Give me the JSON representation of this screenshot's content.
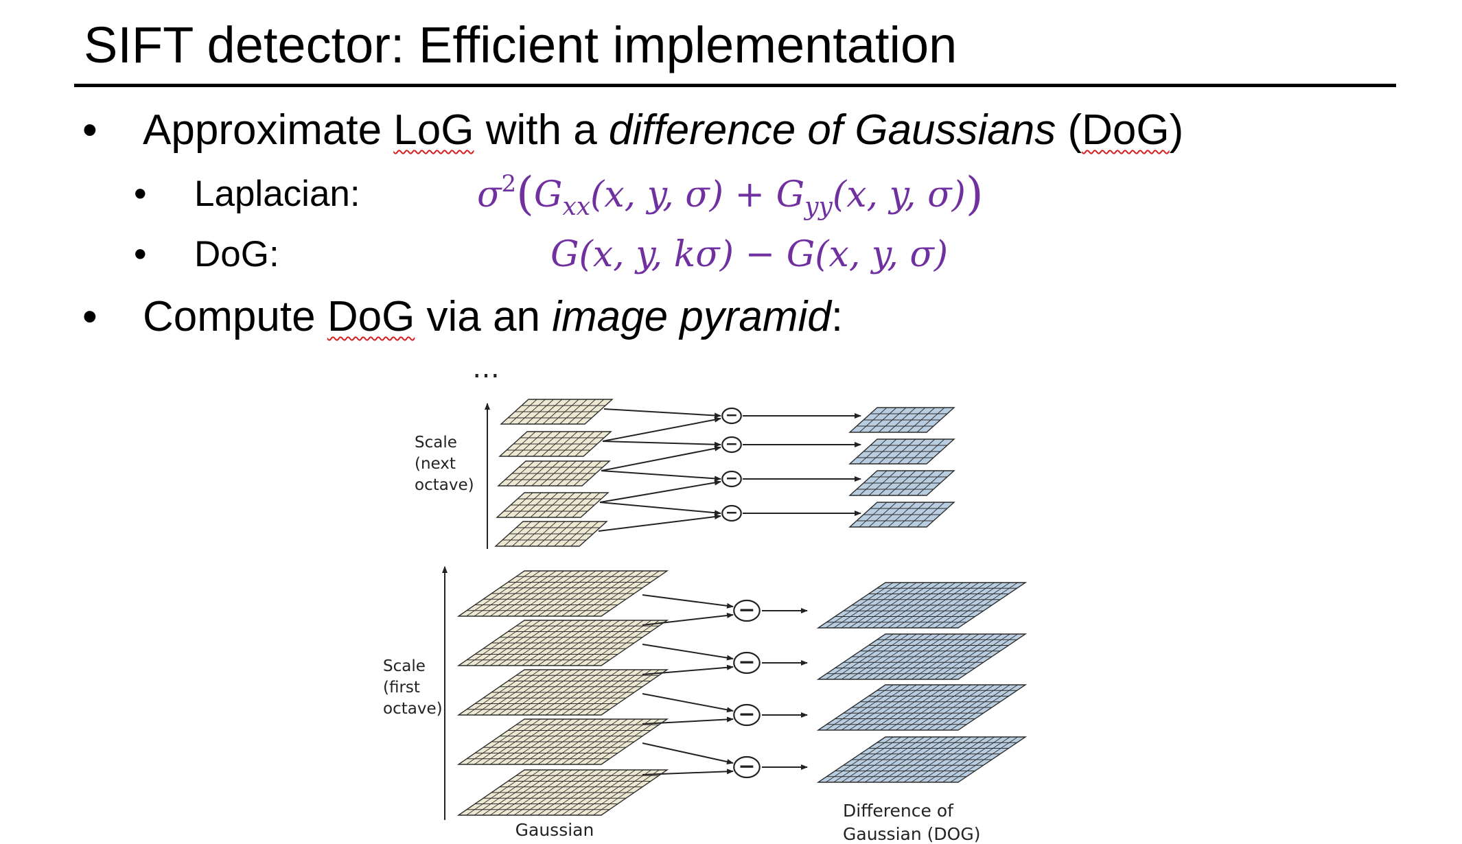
{
  "title": "SIFT detector: Efficient implementation",
  "bullets": {
    "item1": {
      "text_a": "Approximate ",
      "text_b": "LoG",
      "text_c": " with a ",
      "text_d": "difference of Gaussians",
      "text_e": " (",
      "text_f": "DoG",
      "text_g": ")"
    },
    "laplacian_label": "Laplacian:",
    "dog_label": "DoG:",
    "item2": {
      "text_a": "Compute ",
      "text_b": "DoG",
      "text_c": " via an ",
      "text_d": "image pyramid",
      "text_e": ":"
    }
  },
  "formulas": {
    "laplacian": {
      "sigma": "σ",
      "sq": "2",
      "open": "(",
      "g1": "G",
      "sub1": "xx",
      "args1": "(x, y, σ)",
      "plus": " + ",
      "g2": "G",
      "sub2": "yy",
      "args2": "(x, y, σ)",
      "close": ")"
    },
    "dog": {
      "part1": "G(x, y, kσ)",
      "minus": " − ",
      "part2": "G(x, y, σ)"
    }
  },
  "figure": {
    "ellipsis": "…",
    "scale_next_octave": [
      "Scale",
      "(next",
      "octave)"
    ],
    "scale_first_octave": [
      "Scale",
      "(first",
      "octave)"
    ],
    "gaussian_label": "Gaussian",
    "dog_label_lines": [
      "Difference of",
      "Gaussian (DOG)"
    ],
    "minus_symbol": "−",
    "colors": {
      "gaussian_fill": "#ede8d2",
      "dog_fill": "#b9cde0",
      "grid_stroke": "#2b2b2b",
      "formula": "#7030a0"
    }
  }
}
